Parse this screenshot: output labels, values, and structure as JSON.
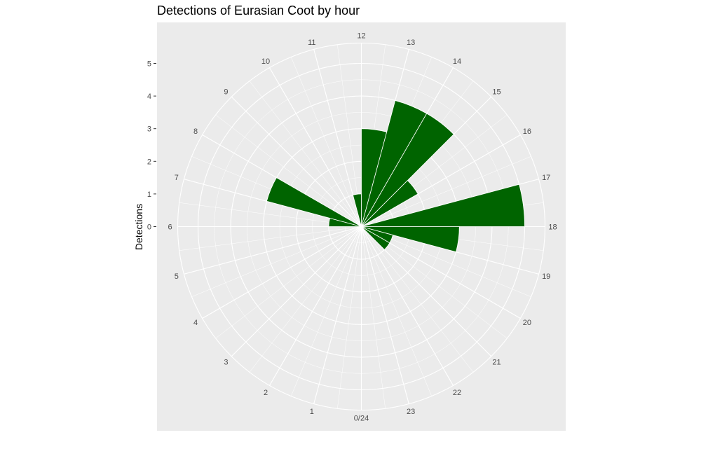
{
  "chart_data": {
    "type": "bar",
    "polar": true,
    "title": "Detections of Eurasian Coot by hour",
    "xlabel": "",
    "ylabel": "Detections",
    "hour_labels": [
      "0/24",
      "1",
      "2",
      "3",
      "4",
      "5",
      "6",
      "7",
      "8",
      "9",
      "10",
      "11",
      "12",
      "13",
      "14",
      "15",
      "16",
      "17",
      "18",
      "19",
      "20",
      "21",
      "22",
      "23"
    ],
    "y_ticks": [
      "0",
      "1",
      "2",
      "3",
      "4",
      "5"
    ],
    "ylim": [
      0,
      5
    ],
    "series": [
      {
        "bars": [
          {
            "hour": 6,
            "value": 1
          },
          {
            "hour": 7,
            "value": 3
          },
          {
            "hour": 11,
            "value": 1
          },
          {
            "hour": 12,
            "value": 3
          },
          {
            "hour": 13,
            "value": 4
          },
          {
            "hour": 14,
            "value": 4
          },
          {
            "hour": 15,
            "value": 2
          },
          {
            "hour": 17,
            "value": 5
          },
          {
            "hour": 18,
            "value": 3
          },
          {
            "hour": 19,
            "value": 1
          },
          {
            "hour": 20,
            "value": 1
          }
        ]
      }
    ],
    "bar_color": "#006400",
    "panel_color": "#ebebeb",
    "grid_color": "#ffffff",
    "grid": true
  }
}
